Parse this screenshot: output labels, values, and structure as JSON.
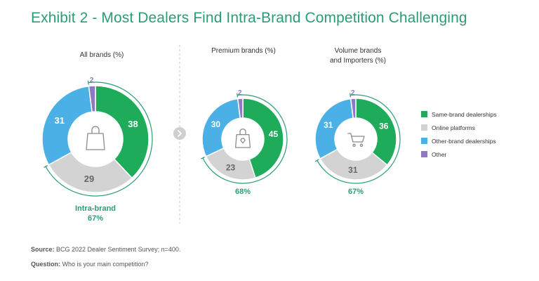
{
  "title": "Exhibit 2 - Most Dealers Find Intra-Brand Competition Challenging",
  "colors": {
    "same": "#1fac5a",
    "online": "#d3d3d3",
    "other_brand": "#4bb0e6",
    "other": "#8f79c2",
    "accent": "#2a9d75"
  },
  "legend": [
    {
      "label": "Same-brand dealerships",
      "color": "#1fac5a"
    },
    {
      "label": "Online platforms",
      "color": "#d3d3d3"
    },
    {
      "label": "Other-brand dealerships",
      "color": "#4bb0e6"
    },
    {
      "label": "Other",
      "color": "#8f79c2"
    }
  ],
  "chart_data": [
    {
      "type": "pie",
      "title": "All brands (%)",
      "categories": [
        "Same-brand dealerships",
        "Online platforms",
        "Other-brand dealerships",
        "Other"
      ],
      "values": [
        38,
        29,
        31,
        2
      ],
      "icon": "shopping-bag-icon",
      "arc_label_line1": "Intra-brand",
      "arc_label_line2": "67%"
    },
    {
      "type": "pie",
      "title": "Premium brands (%)",
      "categories": [
        "Same-brand dealerships",
        "Online platforms",
        "Other-brand dealerships",
        "Other"
      ],
      "values": [
        45,
        23,
        30,
        2
      ],
      "icon": "luxury-bag-icon",
      "arc_label_line1": "",
      "arc_label_line2": "68%"
    },
    {
      "type": "pie",
      "title": "Volume brands and Importers (%)",
      "title_line1": "Volume brands",
      "title_line2": "and Importers (%)",
      "categories": [
        "Same-brand dealerships",
        "Online platforms",
        "Other-brand dealerships",
        "Other"
      ],
      "values": [
        36,
        31,
        31,
        2
      ],
      "icon": "shopping-cart-icon",
      "arc_label_line1": "",
      "arc_label_line2": "67%"
    }
  ],
  "footer": {
    "source_label": "Source:",
    "source_text": " BCG 2022 Dealer Sentiment Survey; n=400.",
    "question_label": "Question:",
    "question_text": " Who is your main competition?"
  }
}
